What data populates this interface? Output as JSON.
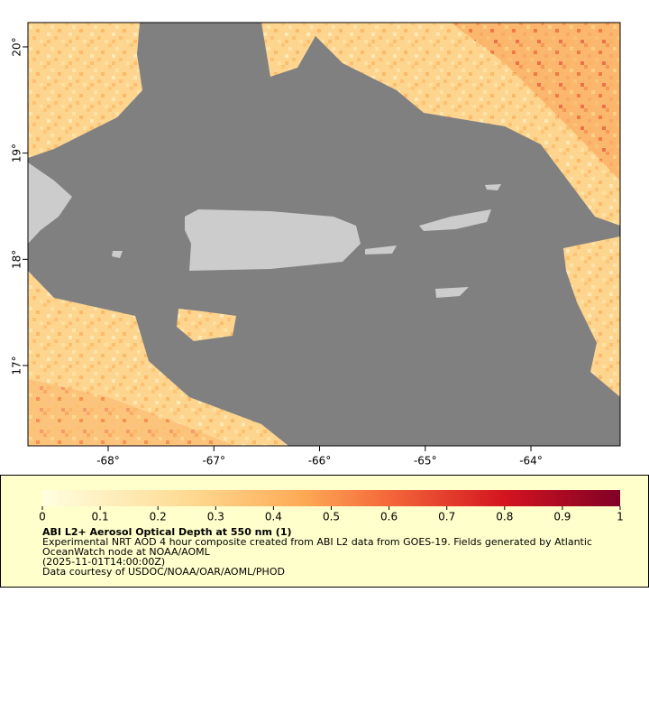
{
  "map": {
    "lon_ticks": [
      {
        "value": -68,
        "label": "-68°"
      },
      {
        "value": -67,
        "label": "-67°"
      },
      {
        "value": -66,
        "label": "-66°"
      },
      {
        "value": -65,
        "label": "-65°"
      },
      {
        "value": -64,
        "label": "-64°"
      }
    ],
    "lat_ticks": [
      {
        "value": 20,
        "label": "20°"
      },
      {
        "value": 19,
        "label": "19°"
      },
      {
        "value": 18,
        "label": "18°"
      },
      {
        "value": 17,
        "label": "17°"
      }
    ],
    "lonlim": [
      -68.759,
      -63.156
    ],
    "latlim": [
      16.244,
      20.229
    ]
  },
  "colorbar": {
    "ticks": [
      0,
      0.1,
      0.2,
      0.3,
      0.4,
      0.5,
      0.6,
      0.7,
      0.8,
      0.9,
      1
    ]
  },
  "legend": {
    "title": "ABI L2+ Aerosol Optical Depth at 550 nm (1)",
    "lines": [
      "Experimental NRT AOD 4 hour composite created from ABI L2 data from GOES-19. Fields generated by Atlantic",
      "OceanWatch node at NOAA/AOML",
      "(2025-11-01T14:00:00Z)",
      "Data courtesy of USDOC/NOAA/OAR/AOML/PHOD"
    ]
  }
}
